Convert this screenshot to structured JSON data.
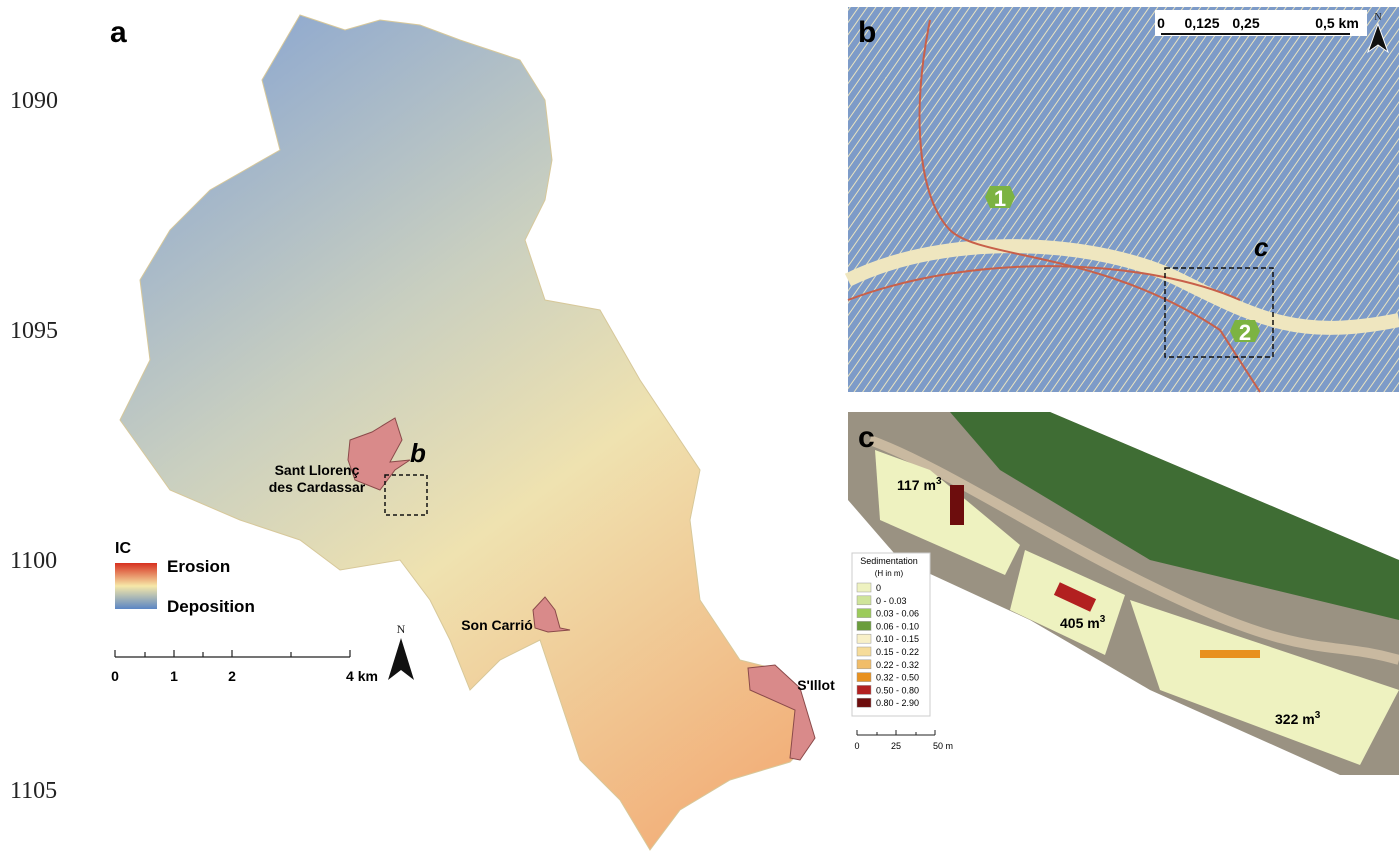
{
  "panel_a": {
    "label": "a",
    "row_labels": [
      "1090",
      "1095",
      "1100",
      "1105"
    ],
    "places": [
      {
        "lines": [
          "Sant Llorenç",
          "des Cardassar"
        ]
      },
      {
        "lines": [
          "Son Carrió"
        ]
      },
      {
        "lines": [
          "S'Illot"
        ]
      }
    ],
    "inset_label": "b",
    "legend": {
      "title": "IC",
      "high": "Erosion",
      "low": "Deposition",
      "colors": [
        "#d7301f",
        "#f6e8a8",
        "#5b86c4"
      ]
    },
    "scale": [
      "0",
      "1",
      "2",
      "4 km"
    ],
    "north": "N"
  },
  "panel_b": {
    "label": "b",
    "scale": [
      "0",
      "0,125",
      "0,25",
      "0,5 km"
    ],
    "north": "N",
    "points": [
      "1",
      "2"
    ],
    "inset_label": "c"
  },
  "panel_c": {
    "label": "c",
    "volumes": [
      {
        "text": "117 m",
        "sup": "3"
      },
      {
        "text": "405 m",
        "sup": "3"
      },
      {
        "text": "322 m",
        "sup": "3"
      }
    ],
    "legend": {
      "title": "Sedimentation",
      "subtitle": "(H in m)",
      "classes": [
        {
          "label": "0",
          "color": "#eef2c0"
        },
        {
          "label": "0 - 0.03",
          "color": "#cfe49a"
        },
        {
          "label": "0.03 - 0.06",
          "color": "#9ccb5a"
        },
        {
          "label": "0.06 - 0.10",
          "color": "#6b9d3c"
        },
        {
          "label": "0.10 - 0.15",
          "color": "#f8f0c8"
        },
        {
          "label": "0.15 - 0.22",
          "color": "#f6dc9a"
        },
        {
          "label": "0.22 - 0.32",
          "color": "#f1bd68"
        },
        {
          "label": "0.32 - 0.50",
          "color": "#e8911f"
        },
        {
          "label": "0.50 - 0.80",
          "color": "#b22020"
        },
        {
          "label": "0.80 - 2.90",
          "color": "#6d0d0d"
        }
      ]
    },
    "scale": [
      "0",
      "25",
      "50 m"
    ]
  }
}
